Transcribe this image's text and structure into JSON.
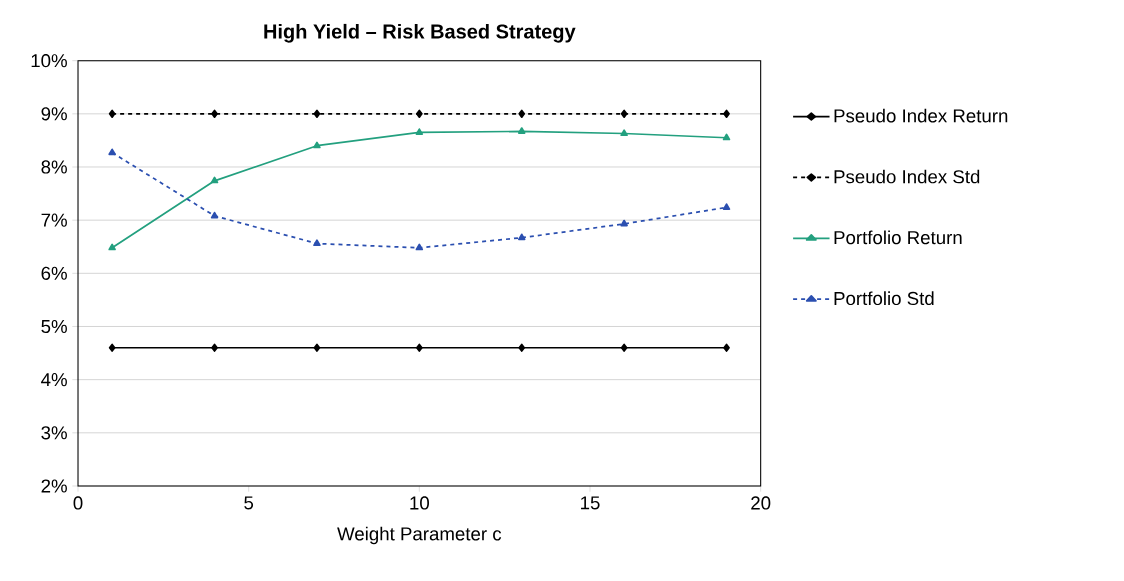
{
  "chart_data": {
    "type": "line",
    "title": "High Yield – Risk Based Strategy",
    "xlabel": "Weight Parameter c",
    "x": [
      1,
      4,
      7,
      10,
      13,
      16,
      19
    ],
    "series": [
      {
        "name": "Pseudo Index Return",
        "color": "#000000",
        "line_style": "solid",
        "marker": "diamond",
        "values": [
          4.6,
          4.6,
          4.6,
          4.6,
          4.6,
          4.6,
          4.6
        ]
      },
      {
        "name": "Pseudo Index Std",
        "color": "#000000",
        "line_style": "dashed",
        "marker": "diamond",
        "values": [
          9.0,
          9.0,
          9.0,
          9.0,
          9.0,
          9.0,
          9.0
        ]
      },
      {
        "name": "Portfolio Return",
        "color": "#23a07f",
        "line_style": "solid",
        "marker": "triangle",
        "values": [
          6.48,
          7.74,
          8.4,
          8.65,
          8.67,
          8.63,
          8.55
        ]
      },
      {
        "name": "Portfolio Std",
        "color": "#2b4fb0",
        "line_style": "dashed",
        "marker": "triangle",
        "values": [
          8.27,
          7.08,
          6.56,
          6.48,
          6.67,
          6.93,
          7.24
        ]
      }
    ],
    "xlim": [
      0,
      20
    ],
    "xticks": [
      0,
      5,
      10,
      15,
      20
    ],
    "ylim": [
      2,
      10
    ],
    "yticks": [
      {
        "value": 2,
        "label": "2%"
      },
      {
        "value": 3,
        "label": "3%"
      },
      {
        "value": 4,
        "label": "4%"
      },
      {
        "value": 5,
        "label": "5%"
      },
      {
        "value": 6,
        "label": "6%"
      },
      {
        "value": 7,
        "label": "7%"
      },
      {
        "value": 8,
        "label": "8%"
      },
      {
        "value": 9,
        "label": "9%"
      },
      {
        "value": 10,
        "label": "10%"
      }
    ],
    "grid": "y",
    "legend": "right"
  }
}
